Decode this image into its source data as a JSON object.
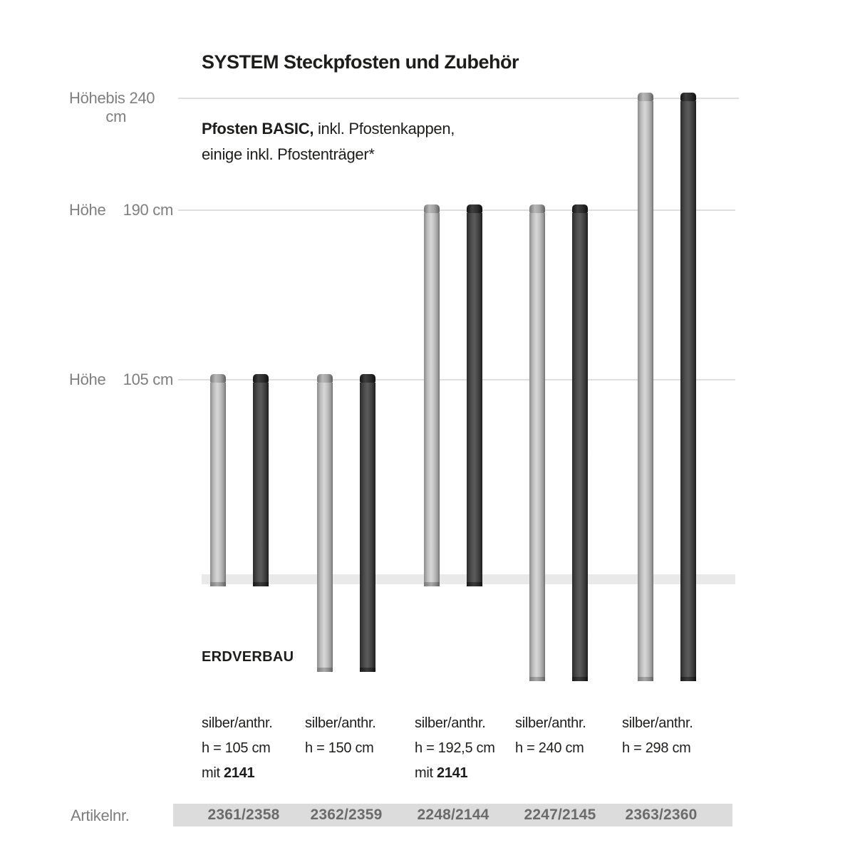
{
  "title": "SYSTEM Steckpfosten und Zubehör",
  "subtitle": {
    "bold": "Pfosten BASIC,",
    "rest": " inkl. Pfostenkappen,",
    "line2": "einige inkl. Pfostenträger*"
  },
  "height_lines": [
    {
      "prefix": "Höhe",
      "value": "bis 240 cm",
      "cm": 240
    },
    {
      "prefix": "Höhe",
      "value": "190 cm",
      "cm": 190
    },
    {
      "prefix": "Höhe",
      "value": "105 cm",
      "cm": 105
    }
  ],
  "ground_label": "ERDVERBAU",
  "artikel_row_label": "Artikelnr.",
  "colors": {
    "silver_post": "#c3c3c3",
    "anthracite_post": "#3f3f3f",
    "gridline": "#dedede",
    "ground_band": "#e9e9e9",
    "artikel_band": "#dcdcdc",
    "label_gray": "#7f7f7f",
    "artikel_num_gray": "#6b6b6b",
    "text_black": "#1d1d1b"
  },
  "chart_data": {
    "type": "diagram-posts",
    "title": "SYSTEM Steckpfosten und Zubehör",
    "height_gridlines_cm": [
      240,
      190,
      105
    ],
    "posts": [
      {
        "color_label": "silber/anthr.",
        "height_label": "h = 105 cm",
        "mit_prefix": "mit",
        "mit_value": "2141",
        "artikelnr": "2361/2358",
        "top_cm": 105,
        "h_cm": 105,
        "buried": false
      },
      {
        "color_label": "silber/anthr.",
        "height_label": "h = 150 cm",
        "mit_prefix": "",
        "mit_value": "",
        "artikelnr": "2362/2359",
        "top_cm": 105,
        "h_cm": 150,
        "buried": true
      },
      {
        "color_label": "silber/anthr.",
        "height_label": "h = 192,5 cm",
        "mit_prefix": "mit",
        "mit_value": "2141",
        "artikelnr": "2248/2144",
        "top_cm": 190,
        "h_cm": 192.5,
        "buried": false
      },
      {
        "color_label": "silber/anthr.",
        "height_label": "h = 240 cm",
        "mit_prefix": "",
        "mit_value": "",
        "artikelnr": "2247/2145",
        "top_cm": 190,
        "h_cm": 240,
        "buried": true
      },
      {
        "color_label": "silber/anthr.",
        "height_label": "h = 298 cm",
        "mit_prefix": "",
        "mit_value": "",
        "artikelnr": "2363/2360",
        "top_cm": 240,
        "h_cm": 298,
        "buried": true
      }
    ]
  }
}
